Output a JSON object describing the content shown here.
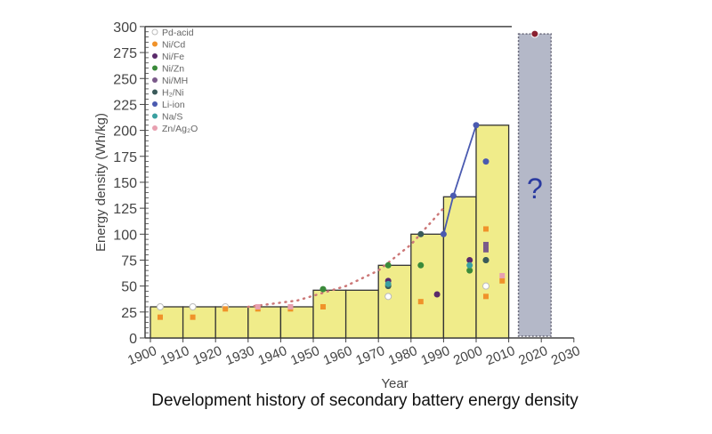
{
  "chart_data": {
    "type": "bar",
    "title": "",
    "caption": "Development history of secondary battery energy density",
    "xlabel": "Year",
    "ylabel": "Energy density (Wh/kg)",
    "xlim": [
      1900,
      2030
    ],
    "ylim": [
      0,
      300
    ],
    "xticks": [
      "1900",
      "1910",
      "1920",
      "1930",
      "1940",
      "1950",
      "1960",
      "1970",
      "1980",
      "1990",
      "2000",
      "2010",
      "2020",
      "2030"
    ],
    "yticks": [
      "0",
      "25",
      "50",
      "75",
      "100",
      "125",
      "150",
      "175",
      "200",
      "225",
      "250",
      "275",
      "300"
    ],
    "bars": [
      {
        "start": 1900,
        "end": 1910,
        "value": 30
      },
      {
        "start": 1910,
        "end": 1920,
        "value": 30
      },
      {
        "start": 1920,
        "end": 1930,
        "value": 30
      },
      {
        "start": 1930,
        "end": 1940,
        "value": 30
      },
      {
        "start": 1940,
        "end": 1950,
        "value": 30
      },
      {
        "start": 1950,
        "end": 1960,
        "value": 46
      },
      {
        "start": 1960,
        "end": 1970,
        "value": 46
      },
      {
        "start": 1970,
        "end": 1980,
        "value": 70
      },
      {
        "start": 1980,
        "end": 1990,
        "value": 100
      },
      {
        "start": 1990,
        "end": 2000,
        "value": 136
      },
      {
        "start": 2000,
        "end": 2010,
        "value": 205
      }
    ],
    "future": {
      "start": 2013,
      "end": 2023,
      "value": 293,
      "label": "?",
      "point": {
        "x": 2018,
        "y": 293
      }
    },
    "legend_position": "top-left",
    "series": [
      {
        "name": "Pd-acid",
        "color": "#ffffff",
        "points": [
          [
            1903,
            30
          ],
          [
            1913,
            30
          ],
          [
            1923,
            30
          ],
          [
            1973,
            40
          ],
          [
            2003,
            50
          ]
        ]
      },
      {
        "name": "Ni/Cd",
        "color": "#f0922a",
        "points": [
          [
            1903,
            20
          ],
          [
            1913,
            20
          ],
          [
            1923,
            28
          ],
          [
            1933,
            28
          ],
          [
            1943,
            28
          ],
          [
            1953,
            30
          ],
          [
            1983,
            35
          ],
          [
            2003,
            40
          ],
          [
            2003,
            105
          ],
          [
            2008,
            55
          ]
        ]
      },
      {
        "name": "Ni/Fe",
        "color": "#5a2a6a",
        "points": [
          [
            1973,
            55
          ],
          [
            1988,
            42
          ],
          [
            1998,
            75
          ]
        ]
      },
      {
        "name": "Ni/Zn",
        "color": "#3a8a3a",
        "points": [
          [
            1953,
            47
          ],
          [
            1973,
            70
          ],
          [
            1983,
            70
          ],
          [
            1998,
            65
          ],
          [
            2003,
            75
          ]
        ]
      },
      {
        "name": "Ni/MH",
        "color": "#7a5a8a",
        "points": [
          [
            2003,
            85
          ],
          [
            2003,
            90
          ]
        ]
      },
      {
        "name": "H2/Ni",
        "color": "#3a5a5a",
        "points": [
          [
            1973,
            50
          ],
          [
            1983,
            100
          ],
          [
            2003,
            75
          ]
        ]
      },
      {
        "name": "Li-ion",
        "color": "#4a5ab0",
        "points": [
          [
            1990,
            100
          ],
          [
            1993,
            137
          ],
          [
            2000,
            205
          ],
          [
            2003,
            170
          ]
        ]
      },
      {
        "name": "Na/S",
        "color": "#3aa0a0",
        "points": [
          [
            1973,
            52
          ],
          [
            1998,
            70
          ]
        ]
      },
      {
        "name": "Zn/Ag2O",
        "color": "#e8a0b0",
        "points": [
          [
            1933,
            30
          ],
          [
            1943,
            30
          ],
          [
            2008,
            60
          ]
        ]
      }
    ],
    "legend_labels": [
      "Pd-acid",
      "Ni/Cd",
      "Ni/Fe",
      "Ni/Zn",
      "Ni/MH",
      "H₂/Ni",
      "Li-ion",
      "Na/S",
      "Zn/Ag₂O"
    ],
    "trend": [
      [
        1930,
        30
      ],
      [
        1945,
        36
      ],
      [
        1960,
        50
      ],
      [
        1970,
        65
      ],
      [
        1980,
        90
      ],
      [
        1990,
        125
      ]
    ],
    "colors": {
      "bar": "#f0ec8a",
      "bar_edge": "#333333",
      "future": "#b4b8c8",
      "question": "#2a3aa0",
      "future_point": "#8a2030"
    }
  }
}
